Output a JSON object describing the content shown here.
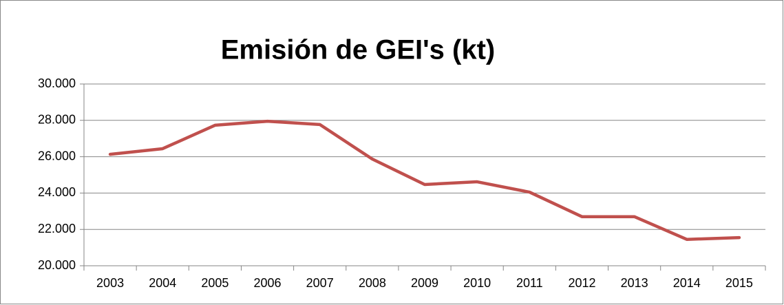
{
  "chart_data": {
    "type": "line",
    "title": "Emisión de GEI's (kt)",
    "categories": [
      "2003",
      "2004",
      "2005",
      "2006",
      "2007",
      "2008",
      "2009",
      "2010",
      "2011",
      "2012",
      "2013",
      "2014",
      "2015"
    ],
    "series": [
      {
        "name": "Emisión de GEI's (kt)",
        "color": "#c0504d",
        "values": [
          26130,
          26440,
          27730,
          27950,
          27770,
          25870,
          24470,
          24620,
          24050,
          22700,
          22700,
          21450,
          21550
        ]
      }
    ],
    "ylim": [
      20000,
      30000
    ],
    "yticks": [
      {
        "value": 20000,
        "label": "20.000"
      },
      {
        "value": 22000,
        "label": "22.000"
      },
      {
        "value": 24000,
        "label": "24.000"
      },
      {
        "value": 26000,
        "label": "26.000"
      },
      {
        "value": 28000,
        "label": "28.000"
      },
      {
        "value": 30000,
        "label": "30.000"
      }
    ],
    "grid": true
  }
}
